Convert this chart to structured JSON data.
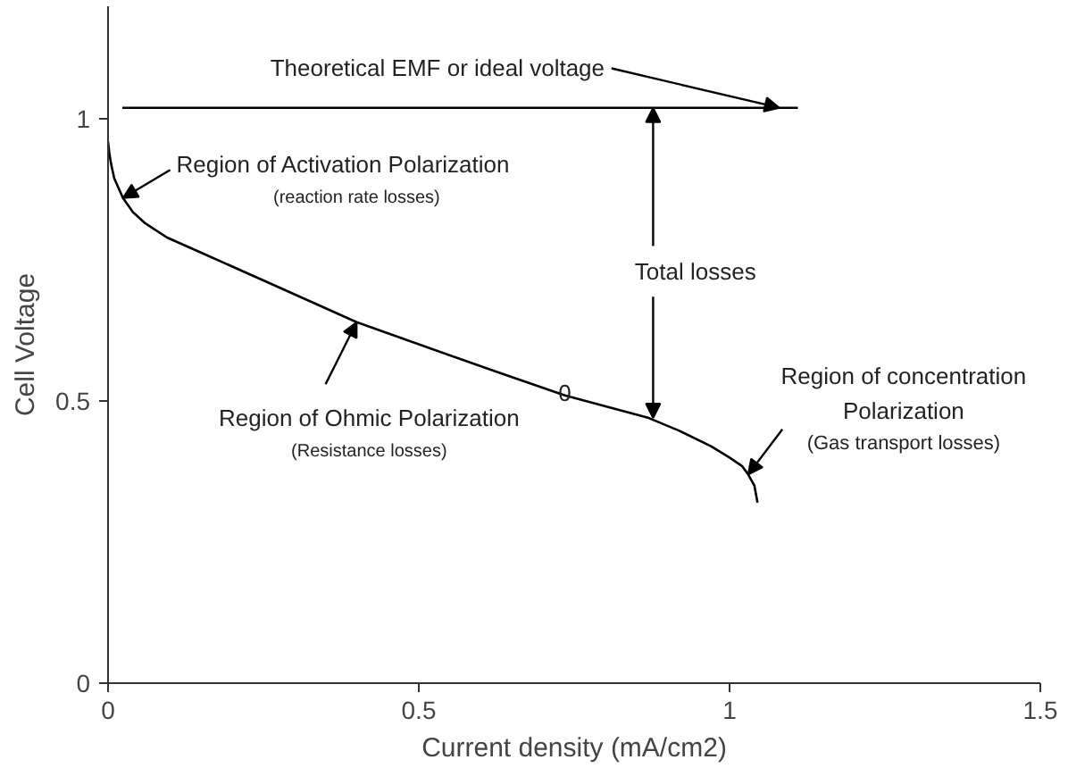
{
  "chart_data": {
    "type": "line",
    "xlabel": "Current density (mA/cm2)",
    "ylabel": "Cell Voltage",
    "xlim": [
      0,
      1.5
    ],
    "ylim": [
      0,
      1.2
    ],
    "xticks": [
      0,
      0.5,
      1,
      1.5
    ],
    "yticks": [
      0,
      0.5,
      1
    ],
    "marker": "none",
    "line_style": "solid",
    "series": [
      {
        "color": "#000000",
        "x": [
          0.023,
          1.11
        ],
        "values": [
          1.02,
          1.02
        ]
      },
      {
        "color": "#000000",
        "x": [
          0,
          0.002,
          0.005,
          0.01,
          0.024,
          0.04,
          0.06,
          0.095,
          0.15,
          0.25,
          0.4,
          0.63,
          0.735,
          0.87,
          0.92,
          0.97,
          1.0,
          1.02,
          1.03,
          1.04,
          1.045
        ],
        "values": [
          0.96,
          0.94,
          0.92,
          0.895,
          0.86,
          0.835,
          0.815,
          0.79,
          0.763,
          0.714,
          0.64,
          0.55,
          0.51,
          0.47,
          0.447,
          0.42,
          0.4,
          0.385,
          0.37,
          0.35,
          0.32
        ]
      }
    ],
    "annotations": [
      {
        "text": "Theoretical EMF or ideal voltage",
        "x": 1.08,
        "y": 1.02
      },
      {
        "text": "Region of Activation Polarization",
        "x": 0.024,
        "y": 0.86
      },
      "(reaction rate losses)",
      {
        "text": "Region of Ohmic Polarization",
        "x": 0.4,
        "y": 0.64
      },
      "(Resistance losses)",
      {
        "text": "Total losses",
        "x": 0.877,
        "y": 0.47
      },
      "Region of concentration",
      "Polarization",
      {
        "text": "(Gas transport losses)",
        "x": 1.03,
        "y": 0.37
      },
      "0"
    ]
  }
}
